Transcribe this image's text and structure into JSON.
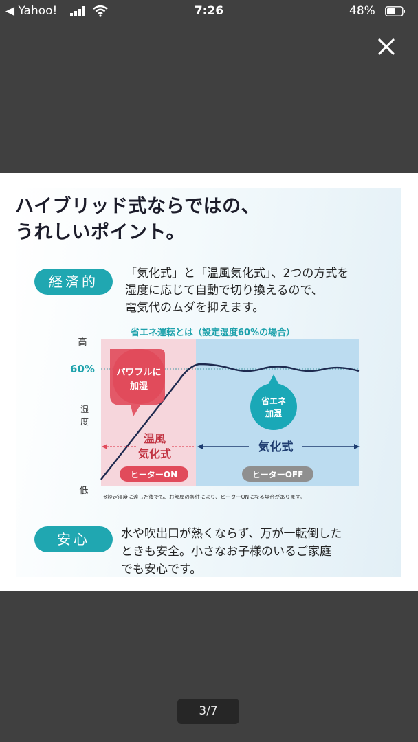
{
  "status_bar": {
    "back_label": "◀ Yahoo!",
    "time": "7:26",
    "battery_percent": "48%"
  },
  "viewer": {
    "page_counter": "3/7"
  },
  "infographic": {
    "heading_line1": "ハイブリッド式ならではの、",
    "heading_line2": "うれしいポイント。",
    "economy": {
      "badge": "経済的",
      "lines": [
        "「気化式」と「温風気化式」、2つの方式を",
        "湿度に応じて自動で切り換えるので、",
        "電気代のムダを抑えます。"
      ]
    },
    "chart_title": "省エネ運転とは（設定湿度60%の場合）",
    "chart_data": {
      "type": "line",
      "title": "省エネ運転とは（設定湿度60%の場合）",
      "ylabel": "湿度",
      "y_tick_labels": [
        "高",
        "60%",
        "低"
      ],
      "setpoint_label": "60%",
      "series": [
        {
          "name": "湿度",
          "x": [
            0,
            0.3,
            0.4,
            0.5,
            0.6,
            0.7,
            0.8,
            0.9,
            1.0
          ],
          "values": [
            0.05,
            0.72,
            0.84,
            0.81,
            0.84,
            0.81,
            0.84,
            0.81,
            0.83
          ]
        }
      ],
      "regions": [
        {
          "name": "温風気化式",
          "label_line1": "温風",
          "label_line2": "気化式",
          "heater": "ヒーターON",
          "x_range": [
            0,
            0.4
          ],
          "color": "#f6d6dc"
        },
        {
          "name": "気化式",
          "label": "気化式",
          "heater": "ヒーターOFF",
          "x_range": [
            0.4,
            1.0
          ],
          "color": "#bcdcf0"
        }
      ],
      "callouts": [
        {
          "line1": "パワフルに",
          "line2": "加湿",
          "color": "#e14b5b"
        },
        {
          "line1": "省エネ",
          "line2": "加湿",
          "color": "#1aa8b7"
        }
      ]
    },
    "footnote": "※設定湿度に達した後でも、お部屋の条件により、ヒーターONになる場合があります。",
    "safety": {
      "badge": "安心",
      "lines": [
        "水や吹出口が熱くならず、万が一転倒した",
        "ときも安全。小さなお子様のいるご家庭",
        "でも安心です。"
      ]
    }
  }
}
